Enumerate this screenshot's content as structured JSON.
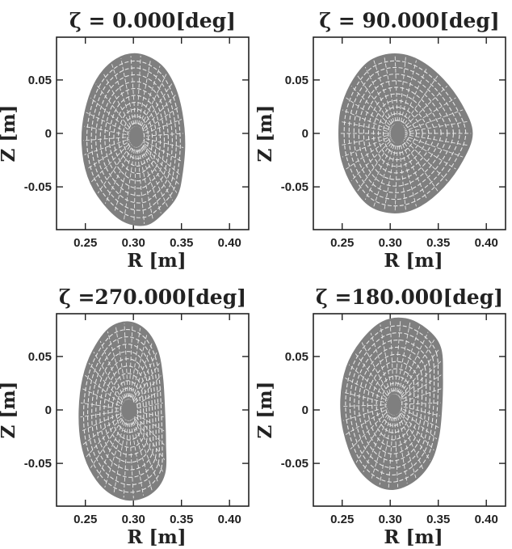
{
  "colors": {
    "mesh": "#7f7f7f",
    "mesh_light": "#e6e6e6",
    "axis": "#222222"
  },
  "chart_data": [
    {
      "type": "mesh",
      "title": "ζ =   0.000[deg]",
      "xlabel": "R [m]",
      "ylabel": "Z [m]",
      "xlim": [
        0.22,
        0.42
      ],
      "ylim": [
        -0.09,
        0.09
      ],
      "xticks": [
        "0.25",
        "0.30",
        "0.35",
        "0.40"
      ],
      "yticks": [
        "0.05",
        "0",
        "-0.05"
      ],
      "axis_center": {
        "r": 0.303,
        "z": -0.003
      },
      "boundary": [
        [
          0.35,
          -0.04
        ],
        [
          0.353,
          -0.01
        ],
        [
          0.35,
          0.02
        ],
        [
          0.342,
          0.045
        ],
        [
          0.328,
          0.064
        ],
        [
          0.305,
          0.074
        ],
        [
          0.282,
          0.069
        ],
        [
          0.262,
          0.05
        ],
        [
          0.25,
          0.02
        ],
        [
          0.247,
          -0.01
        ],
        [
          0.253,
          -0.04
        ],
        [
          0.268,
          -0.064
        ],
        [
          0.29,
          -0.082
        ],
        [
          0.314,
          -0.085
        ],
        [
          0.333,
          -0.072
        ],
        [
          0.345,
          -0.058
        ]
      ]
    },
    {
      "type": "mesh",
      "title": "ζ = 90.000[deg]",
      "xlabel": "R [m]",
      "ylabel": "Z [m]",
      "xlim": [
        0.22,
        0.42
      ],
      "ylim": [
        -0.09,
        0.09
      ],
      "xticks": [
        "0.25",
        "0.30",
        "0.35",
        "0.40"
      ],
      "yticks": [
        "0.05",
        "0",
        "-0.05"
      ],
      "axis_center": {
        "r": 0.308,
        "z": 0.0
      },
      "boundary": [
        [
          0.385,
          0.0
        ],
        [
          0.375,
          0.025
        ],
        [
          0.355,
          0.05
        ],
        [
          0.33,
          0.068
        ],
        [
          0.305,
          0.074
        ],
        [
          0.28,
          0.068
        ],
        [
          0.262,
          0.05
        ],
        [
          0.25,
          0.025
        ],
        [
          0.247,
          0.0
        ],
        [
          0.25,
          -0.025
        ],
        [
          0.262,
          -0.05
        ],
        [
          0.28,
          -0.068
        ],
        [
          0.305,
          -0.074
        ],
        [
          0.33,
          -0.068
        ],
        [
          0.355,
          -0.05
        ],
        [
          0.375,
          -0.025
        ]
      ]
    },
    {
      "type": "mesh",
      "title": "ζ =270.000[deg]",
      "xlabel": "R [m]",
      "ylabel": "Z [m]",
      "xlim": [
        0.22,
        0.42
      ],
      "ylim": [
        -0.09,
        0.09
      ],
      "xticks": [
        "0.25",
        "0.30",
        "0.35",
        "0.40"
      ],
      "yticks": [
        "0.05",
        "0",
        "-0.05"
      ],
      "axis_center": {
        "r": 0.295,
        "z": 0.0
      },
      "boundary": [
        [
          0.332,
          -0.06
        ],
        [
          0.333,
          -0.03
        ],
        [
          0.332,
          0.0
        ],
        [
          0.33,
          0.03
        ],
        [
          0.325,
          0.055
        ],
        [
          0.313,
          0.074
        ],
        [
          0.295,
          0.082
        ],
        [
          0.275,
          0.076
        ],
        [
          0.258,
          0.055
        ],
        [
          0.248,
          0.03
        ],
        [
          0.244,
          0.0
        ],
        [
          0.246,
          -0.03
        ],
        [
          0.255,
          -0.055
        ],
        [
          0.272,
          -0.075
        ],
        [
          0.295,
          -0.084
        ],
        [
          0.318,
          -0.078
        ]
      ]
    },
    {
      "type": "mesh",
      "title": "ζ =180.000[deg]",
      "xlabel": "R [m]",
      "ylabel": "Z [m]",
      "xlim": [
        0.22,
        0.42
      ],
      "ylim": [
        -0.09,
        0.09
      ],
      "xticks": [
        "0.25",
        "0.30",
        "0.35",
        "0.40"
      ],
      "yticks": [
        "0.05",
        "0",
        "-0.05"
      ],
      "axis_center": {
        "r": 0.304,
        "z": 0.005
      },
      "boundary": [
        [
          0.352,
          0.058
        ],
        [
          0.354,
          0.03
        ],
        [
          0.353,
          0.0
        ],
        [
          0.35,
          -0.025
        ],
        [
          0.342,
          -0.048
        ],
        [
          0.325,
          -0.066
        ],
        [
          0.303,
          -0.074
        ],
        [
          0.282,
          -0.068
        ],
        [
          0.264,
          -0.05
        ],
        [
          0.252,
          -0.02
        ],
        [
          0.249,
          0.01
        ],
        [
          0.255,
          0.04
        ],
        [
          0.27,
          0.064
        ],
        [
          0.292,
          0.082
        ],
        [
          0.316,
          0.085
        ],
        [
          0.338,
          0.075
        ]
      ]
    }
  ]
}
